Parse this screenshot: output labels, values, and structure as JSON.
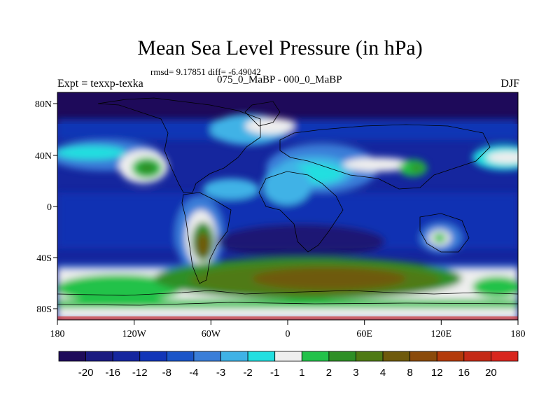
{
  "map": {
    "title": "Mean Sea Level Pressure (in hPa)",
    "stats": "rmsd= 9.17851 diff= -6.49042",
    "left_label": "Expt = texxp-texka",
    "center_label": "075_0_MaBP - 000_0_MaBP",
    "right_label": "DJF",
    "projection": "cylindrical equidistant",
    "lon_range": [
      -180,
      180
    ],
    "lat_range": [
      -90,
      90
    ],
    "x_ticks": [
      "180",
      "120W",
      "60W",
      "0",
      "60E",
      "120E",
      "180"
    ],
    "y_ticks": [
      "80N",
      "40N",
      "0",
      "40S",
      "80S"
    ]
  },
  "colorbar": {
    "labels": [
      "-20",
      "-16",
      "-12",
      "-8",
      "-4",
      "-3",
      "-2",
      "-1",
      "1",
      "2",
      "3",
      "4",
      "8",
      "12",
      "16",
      "20"
    ],
    "colors": [
      "#1e0a5a",
      "#1a1a80",
      "#15269e",
      "#1236b8",
      "#1a55c8",
      "#3a7ed8",
      "#3fb2e6",
      "#22dfe0",
      "#eeeeee",
      "#22c24a",
      "#2e8f26",
      "#4f7a14",
      "#6e5a0c",
      "#8a4a0a",
      "#b33a0a",
      "#c42a16",
      "#d8261e"
    ]
  }
}
